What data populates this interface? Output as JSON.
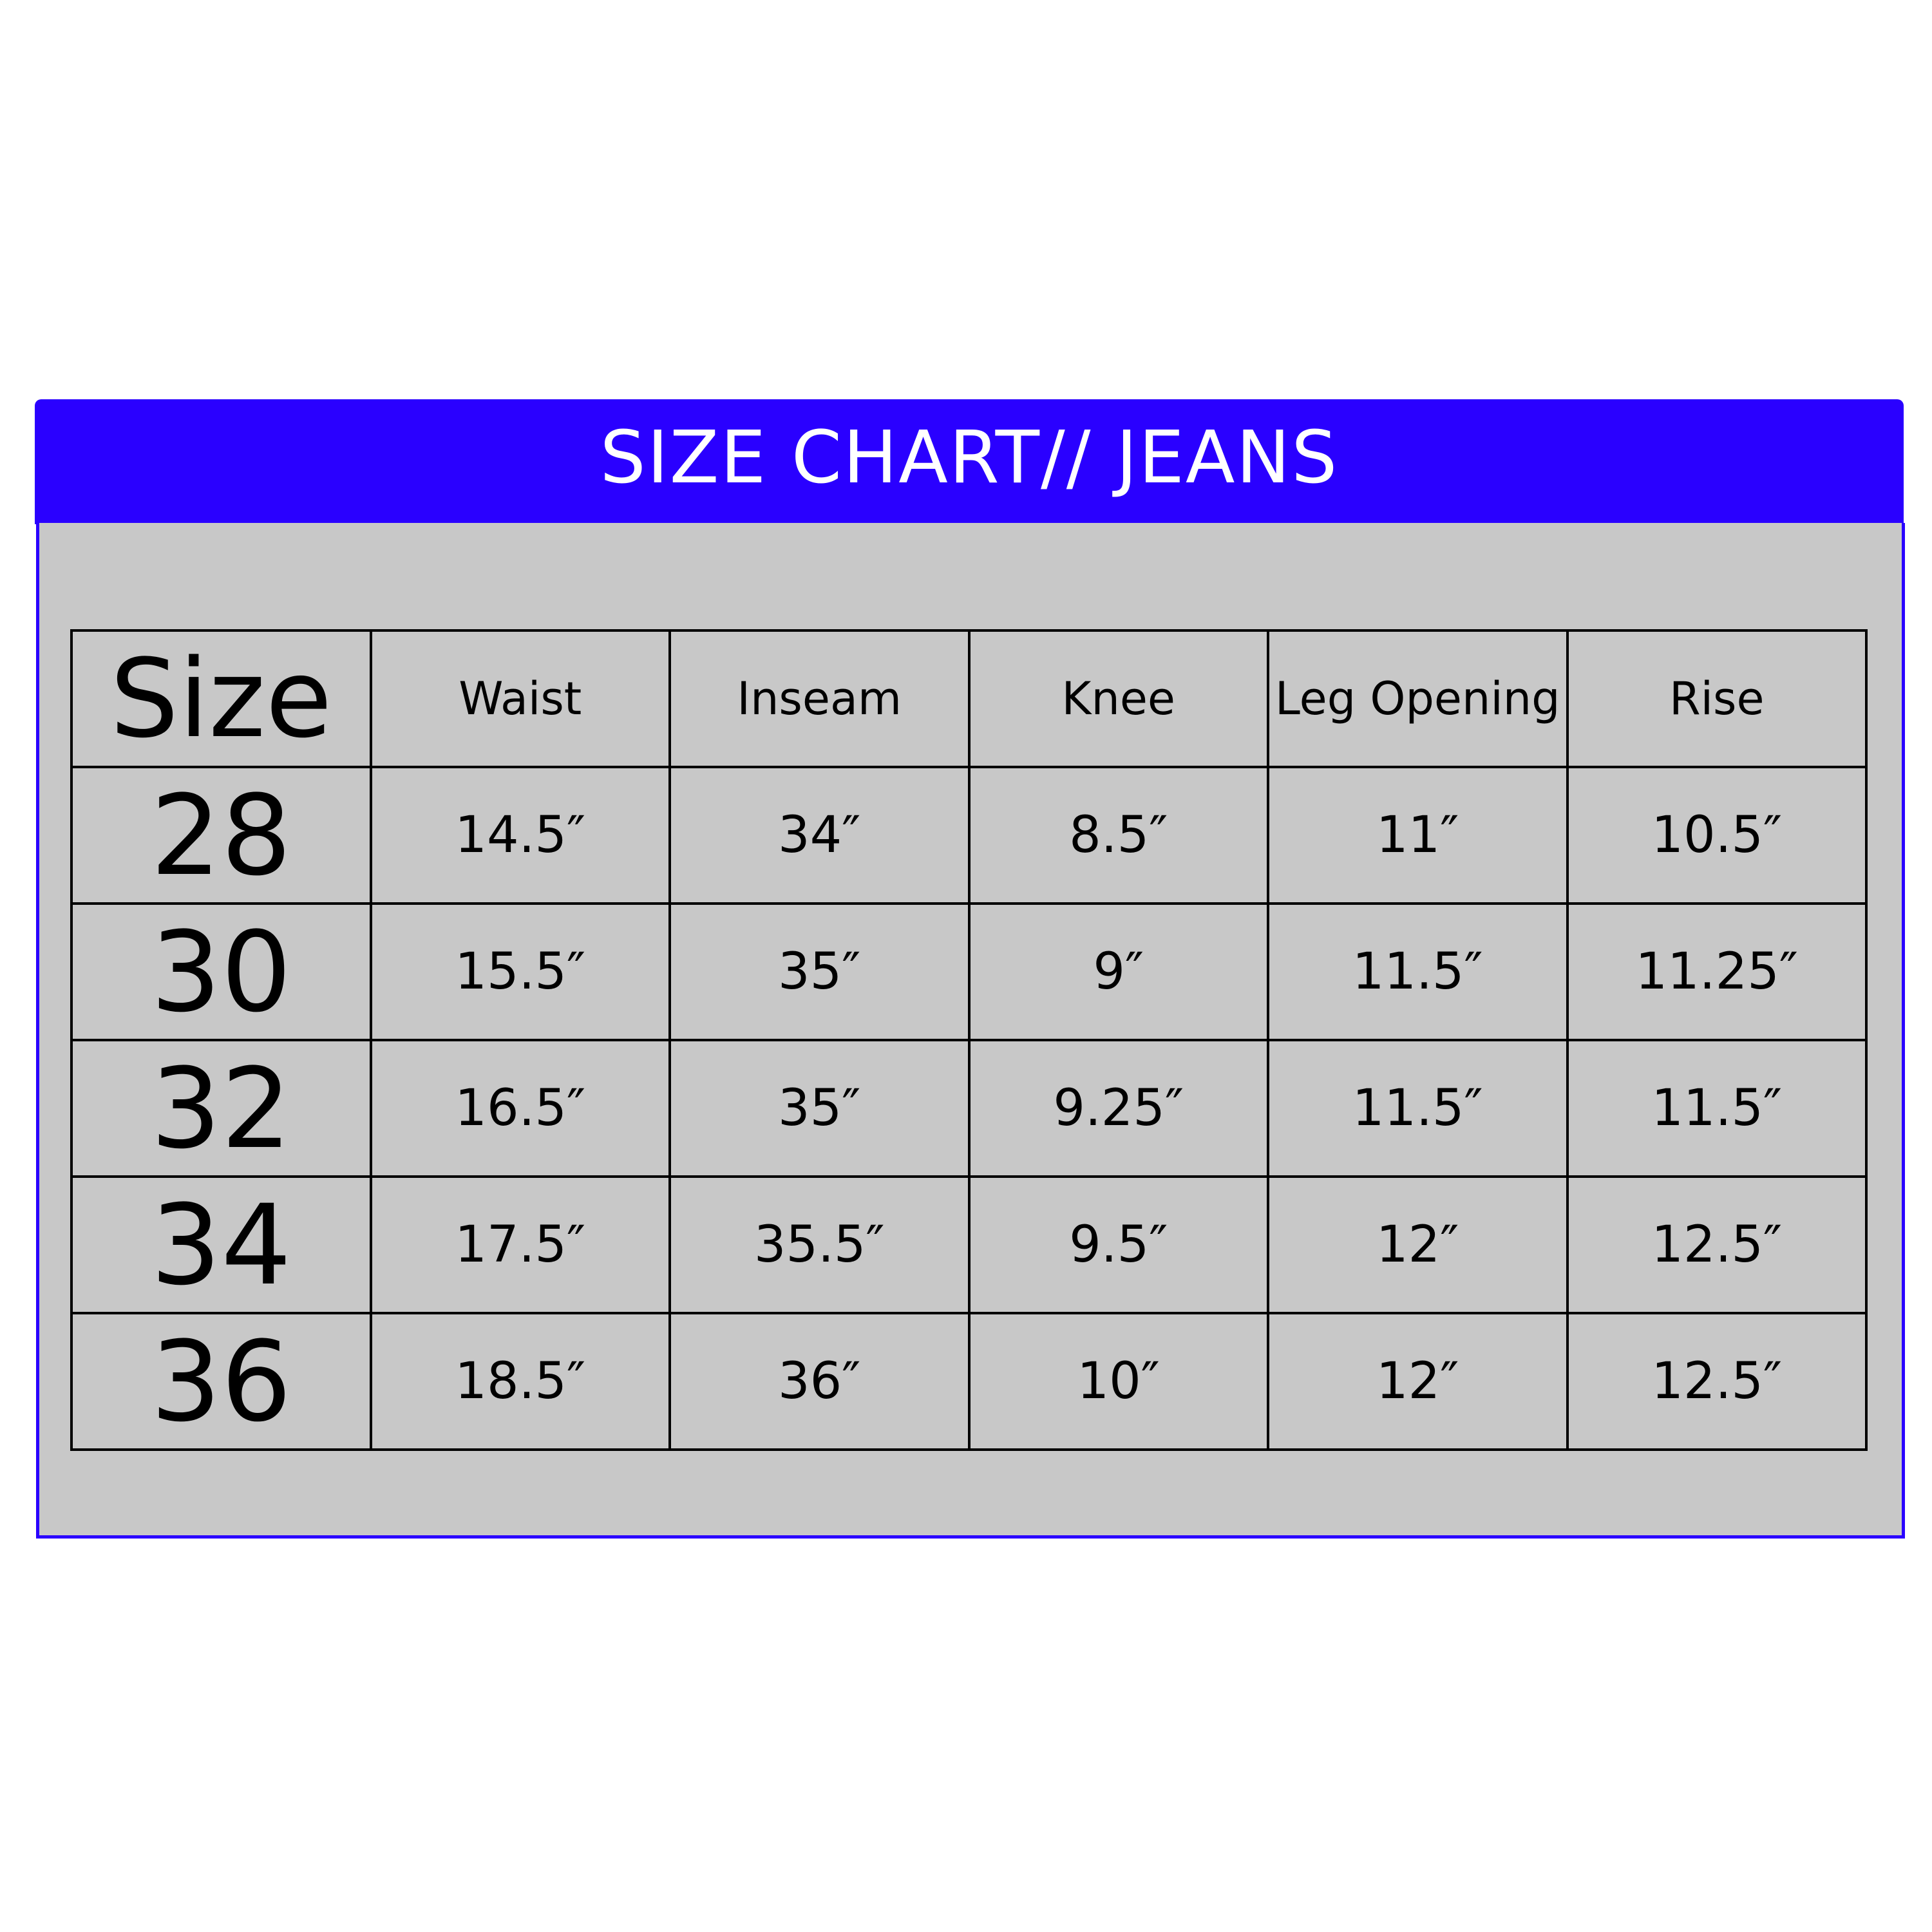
{
  "title": "SIZE CHART// JEANS",
  "colors": {
    "header": "#2a00ff",
    "panel": "#c8c8c8",
    "text": "#000000"
  },
  "table": {
    "headers": [
      "Size",
      "Waist",
      "Inseam",
      "Knee",
      "Leg Opening",
      "Rise"
    ],
    "rows": [
      [
        "28",
        "14.5″",
        "34″",
        "8.5″",
        "11″",
        "10.5″"
      ],
      [
        "30",
        "15.5″",
        "35″",
        "9″",
        "11.5″",
        "11.25″"
      ],
      [
        "32",
        "16.5″",
        "35″",
        "9.25″",
        "11.5″",
        "11.5″"
      ],
      [
        "34",
        "17.5″",
        "35.5″",
        "9.5″",
        "12″",
        "12.5″"
      ],
      [
        "36",
        "18.5″",
        "36″",
        "10″",
        "12″",
        "12.5″"
      ]
    ]
  }
}
